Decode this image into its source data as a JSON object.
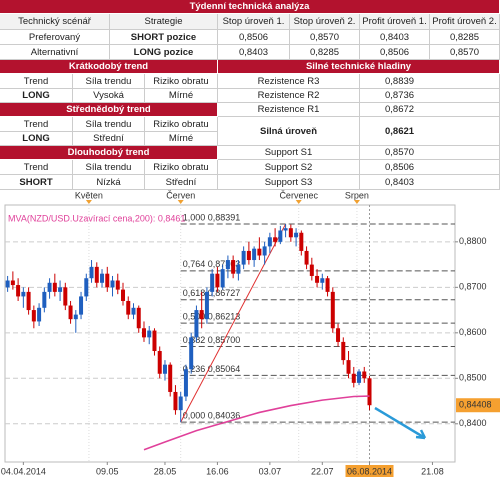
{
  "header": {
    "title": "Týdenní technická analýza"
  },
  "scenario": {
    "columns": [
      "Technický scénář",
      "Strategie",
      "Stop úroveň 1.",
      "Stop úroveň 2.",
      "Profit úroveň 1.",
      "Profit úroveň 2."
    ],
    "rows": [
      [
        "Preferovaný",
        "SHORT pozice",
        "0,8506",
        "0,8570",
        "0,8403",
        "0,8285"
      ],
      [
        "Alternativní",
        "LONG pozice",
        "0,8403",
        "0,8285",
        "0,8506",
        "0,8570"
      ]
    ]
  },
  "trends": [
    {
      "title": "Krátkodobý trend",
      "columns": [
        "Trend",
        "Síla trendu",
        "Riziko obratu"
      ],
      "values": [
        "LONG",
        "Vysoká",
        "Mírné"
      ]
    },
    {
      "title": "Střednědobý trend",
      "columns": [
        "Trend",
        "Síla trendu",
        "Riziko obratu"
      ],
      "values": [
        "LONG",
        "Střední",
        "Mírné"
      ]
    },
    {
      "title": "Dlouhodobý trend",
      "columns": [
        "Trend",
        "Síla trendu",
        "Riziko obratu"
      ],
      "values": [
        "SHORT",
        "Nízká",
        "Střední"
      ]
    }
  ],
  "levels": {
    "title": "Silné technické hladiny",
    "rows": [
      {
        "label": "Rezistence R3",
        "value": "0,8839"
      },
      {
        "label": "Rezistence R2",
        "value": "0,8736"
      },
      {
        "label": "Rezistence R1",
        "value": "0,8672"
      },
      {
        "label": "Silná úroveň",
        "value": "0,8621"
      },
      {
        "label": "Support S1",
        "value": "0,8570"
      },
      {
        "label": "Support S2",
        "value": "0,8506"
      },
      {
        "label": "Support S3",
        "value": "0,8403"
      }
    ]
  },
  "chart_data": {
    "type": "candlestick",
    "up_color": "#1f5fbf",
    "down_color": "#cc0000",
    "open": [
      0.87,
      0.8715,
      0.8705,
      0.868,
      0.869,
      0.865,
      0.8625,
      0.8655,
      0.869,
      0.871,
      0.869,
      0.87,
      0.866,
      0.863,
      0.864,
      0.868,
      0.872,
      0.8745,
      0.871,
      0.873,
      0.87,
      0.8715,
      0.8695,
      0.867,
      0.864,
      0.8655,
      0.861,
      0.859,
      0.8605,
      0.856,
      0.851,
      0.853,
      0.847,
      0.843,
      0.846,
      0.852,
      0.859,
      0.865,
      0.863,
      0.869,
      0.873,
      0.87,
      0.874,
      0.876,
      0.873,
      0.875,
      0.878,
      0.876,
      0.8785,
      0.877,
      0.879,
      0.881,
      0.88,
      0.8825,
      0.883,
      0.881,
      0.882,
      0.878,
      0.875,
      0.8725,
      0.871,
      0.872,
      0.869,
      0.861,
      0.858,
      0.854,
      0.851,
      0.849,
      0.8515,
      0.85
    ],
    "high": [
      0.8725,
      0.8735,
      0.872,
      0.87,
      0.87,
      0.866,
      0.8665,
      0.87,
      0.872,
      0.873,
      0.8715,
      0.871,
      0.867,
      0.865,
      0.869,
      0.873,
      0.876,
      0.8755,
      0.874,
      0.8745,
      0.8725,
      0.873,
      0.871,
      0.868,
      0.8665,
      0.866,
      0.8625,
      0.8615,
      0.861,
      0.857,
      0.854,
      0.8535,
      0.8485,
      0.847,
      0.853,
      0.86,
      0.866,
      0.869,
      0.87,
      0.874,
      0.8745,
      0.875,
      0.877,
      0.877,
      0.876,
      0.879,
      0.88,
      0.879,
      0.881,
      0.88,
      0.882,
      0.883,
      0.8835,
      0.88391,
      0.8838,
      0.883,
      0.8825,
      0.879,
      0.8765,
      0.874,
      0.873,
      0.8725,
      0.87,
      0.862,
      0.859,
      0.856,
      0.8525,
      0.852,
      0.8525,
      0.8505
    ],
    "low": [
      0.869,
      0.8695,
      0.867,
      0.8655,
      0.864,
      0.861,
      0.8615,
      0.8645,
      0.8675,
      0.868,
      0.867,
      0.865,
      0.862,
      0.86,
      0.863,
      0.867,
      0.871,
      0.87,
      0.87,
      0.869,
      0.868,
      0.8685,
      0.866,
      0.863,
      0.863,
      0.86,
      0.858,
      0.8575,
      0.855,
      0.85,
      0.8495,
      0.846,
      0.842,
      0.84036,
      0.845,
      0.851,
      0.858,
      0.861,
      0.862,
      0.868,
      0.869,
      0.8695,
      0.872,
      0.872,
      0.8715,
      0.874,
      0.875,
      0.8745,
      0.876,
      0.875,
      0.8775,
      0.879,
      0.8795,
      0.881,
      0.88,
      0.879,
      0.877,
      0.874,
      0.8715,
      0.87,
      0.8695,
      0.868,
      0.86,
      0.857,
      0.853,
      0.85,
      0.848,
      0.8485,
      0.849,
      0.843
    ],
    "close": [
      0.8715,
      0.8705,
      0.868,
      0.869,
      0.865,
      0.8625,
      0.8655,
      0.869,
      0.871,
      0.869,
      0.87,
      0.866,
      0.863,
      0.864,
      0.868,
      0.872,
      0.8745,
      0.871,
      0.873,
      0.87,
      0.8715,
      0.8695,
      0.867,
      0.864,
      0.8655,
      0.861,
      0.859,
      0.8605,
      0.856,
      0.851,
      0.853,
      0.847,
      0.843,
      0.846,
      0.852,
      0.859,
      0.865,
      0.863,
      0.869,
      0.873,
      0.87,
      0.874,
      0.876,
      0.873,
      0.875,
      0.878,
      0.876,
      0.8785,
      0.877,
      0.879,
      0.881,
      0.88,
      0.8825,
      0.883,
      0.881,
      0.882,
      0.878,
      0.875,
      0.8725,
      0.871,
      0.872,
      0.869,
      0.861,
      0.858,
      0.854,
      0.851,
      0.849,
      0.8515,
      0.85,
      0.84408
    ],
    "price_label": "0,84408",
    "ylim": [
      0.8316,
      0.8881
    ],
    "yticks": [
      {
        "value": 0.84,
        "label": "0,8400"
      },
      {
        "value": 0.85,
        "label": "0,8500"
      },
      {
        "value": 0.86,
        "label": "0,8600"
      },
      {
        "value": 0.87,
        "label": "0,8700"
      },
      {
        "value": 0.88,
        "label": "0,8800"
      }
    ],
    "xlim": [
      -0.5,
      85.3
    ],
    "xticks": [
      {
        "value": 3,
        "label": "04.04.2014"
      },
      {
        "value": 19,
        "label": "09.05"
      },
      {
        "value": 30,
        "label": "28.05"
      },
      {
        "value": 40,
        "label": "16.06"
      },
      {
        "value": 50,
        "label": "03.07"
      },
      {
        "value": 60,
        "label": "22.07"
      },
      {
        "value": 69,
        "label": "06.08.2014"
      },
      {
        "value": 81,
        "label": "21.08"
      }
    ],
    "month_ticks": [
      {
        "value": 15.5,
        "label": "Květen"
      },
      {
        "value": 33,
        "label": "Červen"
      },
      {
        "value": 55.5,
        "label": "Červenec"
      },
      {
        "value": 66.6,
        "label": "Srpen"
      }
    ],
    "fib_levels": [
      {
        "ratio": {
          "value": 0,
          "label": "0,000"
        },
        "price": {
          "value": 0.84036,
          "label": "0,84036"
        }
      },
      {
        "ratio": {
          "value": 0.236,
          "label": "0,236"
        },
        "price": {
          "value": 0.85064,
          "label": "0,85064"
        }
      },
      {
        "ratio": {
          "value": 0.382,
          "label": "0,382"
        },
        "price": {
          "value": 0.857,
          "label": "0,85700"
        }
      },
      {
        "ratio": {
          "value": 0.5,
          "label": "0,500"
        },
        "price": {
          "value": 0.86213,
          "label": "0,86213"
        }
      },
      {
        "ratio": {
          "value": 0.618,
          "label": "0,618"
        },
        "price": {
          "value": 0.86727,
          "label": "0,86727"
        }
      },
      {
        "ratio": {
          "value": 0.764,
          "label": "0,764"
        },
        "price": {
          "value": 0.87363,
          "label": "0,87363"
        }
      },
      {
        "ratio": {
          "value": 1,
          "label": "1,000"
        },
        "price": {
          "value": 0.88391,
          "label": "0,88391"
        }
      }
    ],
    "moving_average": {
      "name": "MVA(NZD/USD.Uzavírací cena,200): 0,8461",
      "color": "#e0409a",
      "x": [
        26,
        30,
        36,
        42,
        48,
        54,
        60,
        66,
        69
      ],
      "values": [
        0.8343,
        0.836,
        0.8385,
        0.8405,
        0.8425,
        0.844,
        0.8452,
        0.846,
        0.8461
      ]
    }
  }
}
